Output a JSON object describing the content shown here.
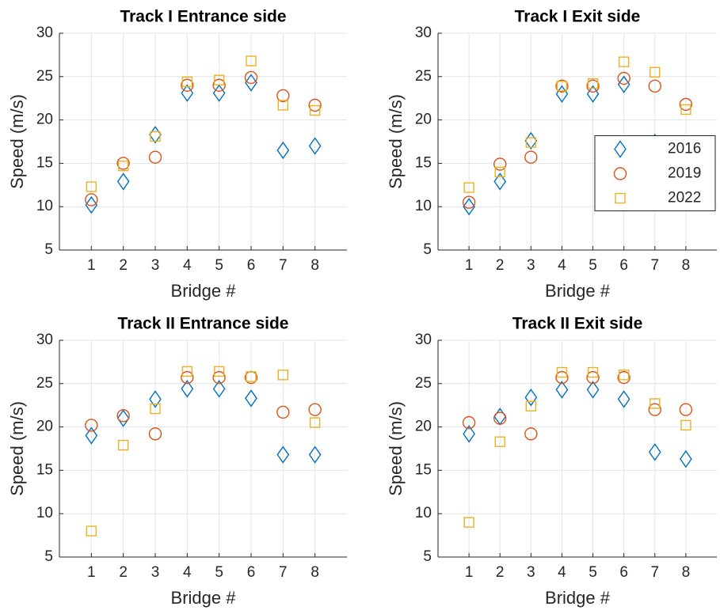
{
  "chart_data": [
    {
      "type": "scatter",
      "title": "Track I Entrance side",
      "xlabel": "Bridge #",
      "ylabel": "Speed (m/s)",
      "x": [
        1,
        2,
        3,
        4,
        5,
        6,
        7,
        8
      ],
      "xlim": [
        0,
        9
      ],
      "xticks": [
        1,
        2,
        3,
        4,
        5,
        6,
        7,
        8
      ],
      "ylim": [
        5,
        30
      ],
      "yticks": [
        5,
        10,
        15,
        20,
        25,
        30
      ],
      "grid": true,
      "series": [
        {
          "color": "#0072BD",
          "marker": "diamond",
          "values": [
            10.2,
            12.9,
            18.3,
            23.1,
            23.1,
            24.3,
            16.5,
            17.0
          ]
        },
        {
          "color": "#D95319",
          "marker": "circle",
          "values": [
            10.8,
            15.0,
            15.7,
            24.0,
            24.0,
            24.9,
            22.8,
            21.7
          ]
        },
        {
          "color": "#EDB120",
          "marker": "square",
          "values": [
            12.3,
            14.7,
            18.1,
            24.4,
            24.6,
            26.8,
            21.7,
            21.1
          ]
        }
      ]
    },
    {
      "type": "scatter",
      "title": "Track I Exit side",
      "xlabel": "Bridge #",
      "ylabel": "Speed (m/s)",
      "x": [
        1,
        2,
        3,
        4,
        5,
        6,
        7,
        8
      ],
      "xlim": [
        0,
        9
      ],
      "xticks": [
        1,
        2,
        3,
        4,
        5,
        6,
        7,
        8
      ],
      "ylim": [
        5,
        30
      ],
      "yticks": [
        5,
        10,
        15,
        20,
        25,
        30
      ],
      "grid": true,
      "legend": "east",
      "series": [
        {
          "name": "2016",
          "color": "#0072BD",
          "marker": "diamond",
          "values": [
            10.0,
            12.9,
            17.6,
            23.0,
            23.0,
            24.1,
            17.4,
            17.0
          ]
        },
        {
          "name": "2019",
          "color": "#D95319",
          "marker": "circle",
          "values": [
            10.5,
            14.9,
            15.7,
            23.9,
            23.9,
            24.8,
            23.9,
            21.8
          ]
        },
        {
          "name": "2022",
          "color": "#EDB120",
          "marker": "square",
          "values": [
            12.2,
            14.0,
            17.4,
            23.9,
            24.2,
            26.7,
            25.5,
            21.2
          ]
        }
      ]
    },
    {
      "type": "scatter",
      "title": "Track II Entrance side",
      "xlabel": "Bridge #",
      "ylabel": "Speed (m/s)",
      "x": [
        1,
        2,
        3,
        4,
        5,
        6,
        7,
        8
      ],
      "xlim": [
        0,
        9
      ],
      "xticks": [
        1,
        2,
        3,
        4,
        5,
        6,
        7,
        8
      ],
      "ylim": [
        5,
        30
      ],
      "yticks": [
        5,
        10,
        15,
        20,
        25,
        30
      ],
      "grid": true,
      "series": [
        {
          "color": "#0072BD",
          "marker": "diamond",
          "values": [
            19.0,
            21.0,
            23.2,
            24.4,
            24.4,
            23.3,
            16.8,
            16.8
          ]
        },
        {
          "color": "#D95319",
          "marker": "circle",
          "values": [
            20.2,
            21.3,
            19.2,
            25.7,
            25.7,
            25.7,
            21.7,
            22.0
          ]
        },
        {
          "color": "#EDB120",
          "marker": "square",
          "values": [
            8.0,
            17.9,
            22.1,
            26.4,
            26.4,
            25.8,
            26.0,
            20.5
          ]
        }
      ]
    },
    {
      "type": "scatter",
      "title": "Track II Exit side",
      "xlabel": "Bridge #",
      "ylabel": "Speed (m/s)",
      "x": [
        1,
        2,
        3,
        4,
        5,
        6,
        7,
        8
      ],
      "xlim": [
        0,
        9
      ],
      "xticks": [
        1,
        2,
        3,
        4,
        5,
        6,
        7,
        8
      ],
      "ylim": [
        5,
        30
      ],
      "yticks": [
        5,
        10,
        15,
        20,
        25,
        30
      ],
      "grid": true,
      "series": [
        {
          "color": "#0072BD",
          "marker": "diamond",
          "values": [
            19.2,
            21.2,
            23.4,
            24.3,
            24.3,
            23.2,
            17.1,
            16.3
          ]
        },
        {
          "color": "#D95319",
          "marker": "circle",
          "values": [
            20.5,
            21.0,
            19.2,
            25.7,
            25.7,
            25.7,
            22.0,
            22.0
          ]
        },
        {
          "color": "#EDB120",
          "marker": "square",
          "values": [
            9.0,
            18.3,
            22.4,
            26.3,
            26.3,
            26.0,
            22.7,
            20.2
          ]
        }
      ]
    }
  ]
}
